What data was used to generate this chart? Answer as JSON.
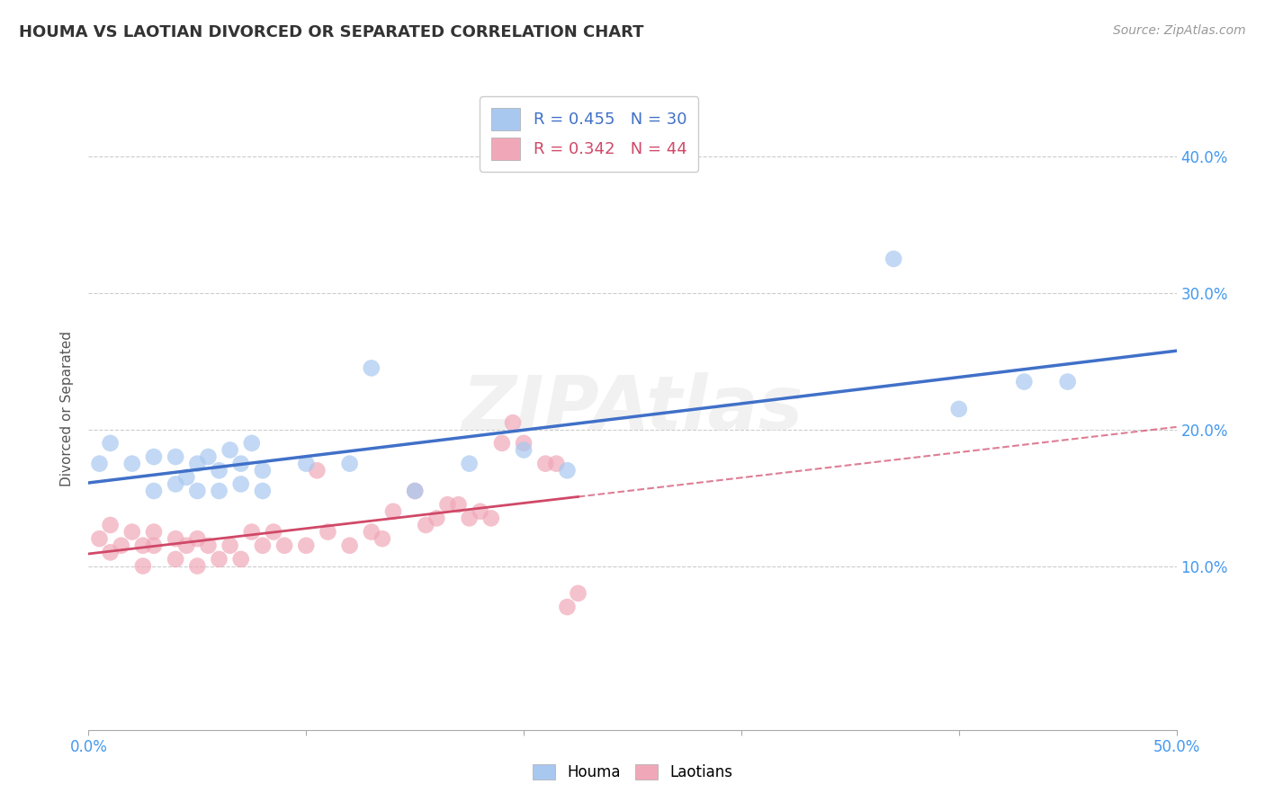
{
  "title": "HOUMA VS LAOTIAN DIVORCED OR SEPARATED CORRELATION CHART",
  "source": "Source: ZipAtlas.com",
  "ylabel": "Divorced or Separated",
  "xlim": [
    0.0,
    0.5
  ],
  "ylim": [
    -0.02,
    0.45
  ],
  "xtick_vals": [
    0.0,
    0.1,
    0.2,
    0.3,
    0.4,
    0.5
  ],
  "ytick_vals": [
    0.1,
    0.2,
    0.3,
    0.4
  ],
  "ytick_labels": [
    "10.0%",
    "20.0%",
    "30.0%",
    "40.0%"
  ],
  "houma_R": 0.455,
  "houma_N": 30,
  "laotian_R": 0.342,
  "laotian_N": 44,
  "houma_color": "#a8c8f0",
  "houma_line_color": "#4070c8",
  "laotian_color": "#f0a8b8",
  "laotian_line_color": "#d04868",
  "background_color": "#ffffff",
  "tick_color": "#4499ee",
  "legend_houma": "Houma",
  "legend_laotian": "Laotians",
  "houma_scatter_x": [
    0.005,
    0.01,
    0.02,
    0.03,
    0.03,
    0.04,
    0.04,
    0.045,
    0.05,
    0.05,
    0.055,
    0.06,
    0.06,
    0.065,
    0.07,
    0.07,
    0.075,
    0.08,
    0.08,
    0.1,
    0.12,
    0.13,
    0.15,
    0.175,
    0.2,
    0.22,
    0.37,
    0.4,
    0.43,
    0.45
  ],
  "houma_scatter_y": [
    0.175,
    0.19,
    0.175,
    0.155,
    0.18,
    0.16,
    0.18,
    0.165,
    0.155,
    0.175,
    0.18,
    0.155,
    0.17,
    0.185,
    0.16,
    0.175,
    0.19,
    0.155,
    0.17,
    0.175,
    0.175,
    0.245,
    0.155,
    0.175,
    0.185,
    0.17,
    0.325,
    0.215,
    0.235,
    0.235
  ],
  "laotian_scatter_x": [
    0.005,
    0.01,
    0.01,
    0.015,
    0.02,
    0.025,
    0.025,
    0.03,
    0.03,
    0.04,
    0.04,
    0.045,
    0.05,
    0.05,
    0.055,
    0.06,
    0.065,
    0.07,
    0.075,
    0.08,
    0.085,
    0.09,
    0.1,
    0.105,
    0.11,
    0.12,
    0.13,
    0.135,
    0.14,
    0.15,
    0.155,
    0.16,
    0.165,
    0.17,
    0.175,
    0.18,
    0.185,
    0.19,
    0.195,
    0.2,
    0.21,
    0.215,
    0.22,
    0.225
  ],
  "laotian_scatter_y": [
    0.12,
    0.11,
    0.13,
    0.115,
    0.125,
    0.1,
    0.115,
    0.115,
    0.125,
    0.105,
    0.12,
    0.115,
    0.1,
    0.12,
    0.115,
    0.105,
    0.115,
    0.105,
    0.125,
    0.115,
    0.125,
    0.115,
    0.115,
    0.17,
    0.125,
    0.115,
    0.125,
    0.12,
    0.14,
    0.155,
    0.13,
    0.135,
    0.145,
    0.145,
    0.135,
    0.14,
    0.135,
    0.19,
    0.205,
    0.19,
    0.175,
    0.175,
    0.07,
    0.08
  ]
}
